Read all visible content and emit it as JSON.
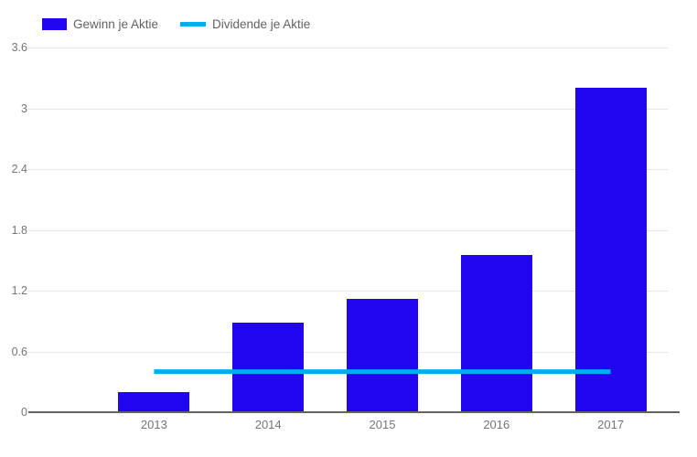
{
  "legend": {
    "items": [
      {
        "label": "Gewinn je Aktie",
        "swatch": "bar-swatch"
      },
      {
        "label": "Dividende je Aktie",
        "swatch": "line-swatch"
      }
    ]
  },
  "chart_data": {
    "type": "bar",
    "categories": [
      "2013",
      "2014",
      "2015",
      "2016",
      "2017"
    ],
    "series": [
      {
        "name": "Gewinn je Aktie",
        "render": "bar",
        "color": "#2105ee",
        "values": [
          0.2,
          0.88,
          1.12,
          1.55,
          3.2
        ]
      },
      {
        "name": "Dividende je Aktie",
        "render": "line",
        "color": "#00aeef",
        "values": [
          0.4,
          0.4,
          0.4,
          0.4,
          0.4
        ]
      }
    ],
    "title": "",
    "xlabel": "",
    "ylabel": "",
    "ylim": [
      0,
      3.6
    ],
    "yticks": [
      0,
      0.6,
      1.2,
      1.8,
      2.4,
      3,
      3.6
    ],
    "ytick_labels": [
      "0",
      "0.6",
      "1.2",
      "1.8",
      "2.4",
      "3",
      "3.6"
    ],
    "grid": true,
    "legend_position": "top-left",
    "colors": {
      "background": "#ffffff",
      "gridline": "#e6e6e6",
      "baseline": "#636363",
      "axis_text": "#757575",
      "legend_text": "#616161"
    }
  }
}
